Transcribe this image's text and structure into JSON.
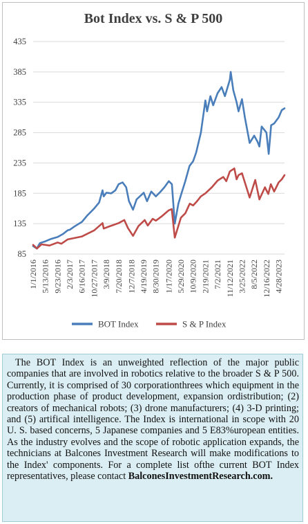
{
  "chart_data": {
    "type": "line",
    "title": "Bot Index vs. S & P 500",
    "xlabel": "",
    "ylabel": "",
    "ylim": [
      85,
      435
    ],
    "yticks": [
      85,
      135,
      185,
      235,
      285,
      335,
      385,
      435
    ],
    "xtick_labels": [
      "1/1/2016",
      "5/13/2016",
      "9/23/2016",
      "2/3/2017",
      "6/16/2017",
      "10/27/2017",
      "3/9/2018",
      "7/20/2018",
      "12/7/2018",
      "4/19/2019",
      "8/30/2019",
      "1/17/2020",
      "5/29/2020",
      "10/9/2020",
      "2/19/2021",
      "7/2/2021",
      "11/12/2021",
      "3/25/2022",
      "8/5/2022",
      "12/16/2022",
      "4/28/2023"
    ],
    "grid": true,
    "legend": "bottom",
    "series": [
      {
        "name": "BOT Index",
        "color": "#4a7ebb",
        "points": [
          [
            "2016-01-01",
            98
          ],
          [
            "2016-02-10",
            94
          ],
          [
            "2016-03-15",
            103
          ],
          [
            "2016-05-13",
            106
          ],
          [
            "2016-07-15",
            110
          ],
          [
            "2016-09-23",
            113
          ],
          [
            "2016-11-20",
            118
          ],
          [
            "2017-01-10",
            124
          ],
          [
            "2017-02-03",
            125
          ],
          [
            "2017-04-01",
            131
          ],
          [
            "2017-06-16",
            138
          ],
          [
            "2017-08-10",
            148
          ],
          [
            "2017-10-27",
            160
          ],
          [
            "2017-12-20",
            170
          ],
          [
            "2018-01-26",
            190
          ],
          [
            "2018-02-08",
            180
          ],
          [
            "2018-03-09",
            186
          ],
          [
            "2018-05-01",
            185
          ],
          [
            "2018-06-15",
            190
          ],
          [
            "2018-07-20",
            200
          ],
          [
            "2018-09-01",
            203
          ],
          [
            "2018-10-10",
            195
          ],
          [
            "2018-11-10",
            172
          ],
          [
            "2018-12-24",
            158
          ],
          [
            "2019-02-01",
            175
          ],
          [
            "2019-04-19",
            186
          ],
          [
            "2019-05-25",
            172
          ],
          [
            "2019-07-10",
            188
          ],
          [
            "2019-08-30",
            180
          ],
          [
            "2019-10-15",
            187
          ],
          [
            "2019-12-01",
            195
          ],
          [
            "2020-01-17",
            205
          ],
          [
            "2020-02-20",
            200
          ],
          [
            "2020-03-23",
            135
          ],
          [
            "2020-05-01",
            168
          ],
          [
            "2020-05-29",
            182
          ],
          [
            "2020-07-15",
            205
          ],
          [
            "2020-08-30",
            230
          ],
          [
            "2020-10-09",
            238
          ],
          [
            "2020-11-10",
            252
          ],
          [
            "2021-01-01",
            285
          ],
          [
            "2021-02-19",
            338
          ],
          [
            "2021-03-10",
            320
          ],
          [
            "2021-04-15",
            345
          ],
          [
            "2021-05-15",
            330
          ],
          [
            "2021-07-02",
            350
          ],
          [
            "2021-08-15",
            360
          ],
          [
            "2021-09-20",
            345
          ],
          [
            "2021-11-12",
            372
          ],
          [
            "2021-11-22",
            385
          ],
          [
            "2021-12-20",
            355
          ],
          [
            "2022-01-25",
            335
          ],
          [
            "2022-02-15",
            320
          ],
          [
            "2022-03-25",
            340
          ],
          [
            "2022-04-25",
            310
          ],
          [
            "2022-06-16",
            268
          ],
          [
            "2022-08-05",
            280
          ],
          [
            "2022-09-10",
            270
          ],
          [
            "2022-09-30",
            262
          ],
          [
            "2022-10-25",
            295
          ],
          [
            "2022-11-20",
            290
          ],
          [
            "2022-12-16",
            285
          ],
          [
            "2023-01-10",
            250
          ],
          [
            "2023-02-05",
            297
          ],
          [
            "2023-03-10",
            300
          ],
          [
            "2023-04-28",
            310
          ],
          [
            "2023-06-01",
            322
          ],
          [
            "2023-07-01",
            325
          ]
        ]
      },
      {
        "name": "S & P Index",
        "color": "#be4b48",
        "points": [
          [
            "2016-01-01",
            100
          ],
          [
            "2016-02-11",
            94
          ],
          [
            "2016-04-01",
            101
          ],
          [
            "2016-06-27",
            99
          ],
          [
            "2016-09-23",
            104
          ],
          [
            "2016-11-04",
            102
          ],
          [
            "2017-01-10",
            109
          ],
          [
            "2017-06-16",
            114
          ],
          [
            "2017-10-27",
            124
          ],
          [
            "2018-01-26",
            136
          ],
          [
            "2018-02-08",
            127
          ],
          [
            "2018-04-01",
            130
          ],
          [
            "2018-07-20",
            136
          ],
          [
            "2018-09-20",
            141
          ],
          [
            "2018-10-29",
            128
          ],
          [
            "2018-12-24",
            115
          ],
          [
            "2019-02-20",
            131
          ],
          [
            "2019-04-30",
            141
          ],
          [
            "2019-06-03",
            132
          ],
          [
            "2019-07-26",
            143
          ],
          [
            "2019-08-30",
            140
          ],
          [
            "2019-11-01",
            147
          ],
          [
            "2020-01-17",
            157
          ],
          [
            "2020-02-19",
            159
          ],
          [
            "2020-03-23",
            112
          ],
          [
            "2020-05-29",
            145
          ],
          [
            "2020-07-15",
            152
          ],
          [
            "2020-09-02",
            168
          ],
          [
            "2020-10-09",
            165
          ],
          [
            "2020-11-20",
            172
          ],
          [
            "2021-01-01",
            180
          ],
          [
            "2021-02-19",
            185
          ],
          [
            "2021-05-01",
            195
          ],
          [
            "2021-07-02",
            206
          ],
          [
            "2021-09-02",
            212
          ],
          [
            "2021-10-05",
            205
          ],
          [
            "2021-11-12",
            221
          ],
          [
            "2021-12-31",
            226
          ],
          [
            "2022-01-25",
            208
          ],
          [
            "2022-02-15",
            215
          ],
          [
            "2022-03-25",
            218
          ],
          [
            "2022-06-16",
            178
          ],
          [
            "2022-08-16",
            207
          ],
          [
            "2022-09-30",
            175
          ],
          [
            "2022-11-30",
            195
          ],
          [
            "2022-12-16",
            190
          ],
          [
            "2023-01-05",
            184
          ],
          [
            "2023-02-02",
            200
          ],
          [
            "2023-03-10",
            188
          ],
          [
            "2023-04-28",
            203
          ],
          [
            "2023-06-01",
            208
          ],
          [
            "2023-07-01",
            215
          ]
        ]
      }
    ]
  },
  "note": {
    "text": "The BOT Index is an unweighted reflection of the major public companies that are involved in robotics relative to the broader S & P 500. Currently, it is comprised of 30 corporationthrees which equipment in the production phase of product development, expansion ordistribution; (2) creators of mechanical robots; (3) drone manufacturers; (4) 3-D printing; and (5) artifical intelligence. The Index is international in scope with 20 U. S. based concerns, 5 Japanese companies and 5 E83%uropean entities. As the industry evolves and the scope of robotic application expands, the technicians at Balcones Investment Research will make modifications to the Index' components. For a  complete list ofthe current BOT Index representatives, please contact",
    "link": "BalconesInvestmentResearch.com."
  }
}
